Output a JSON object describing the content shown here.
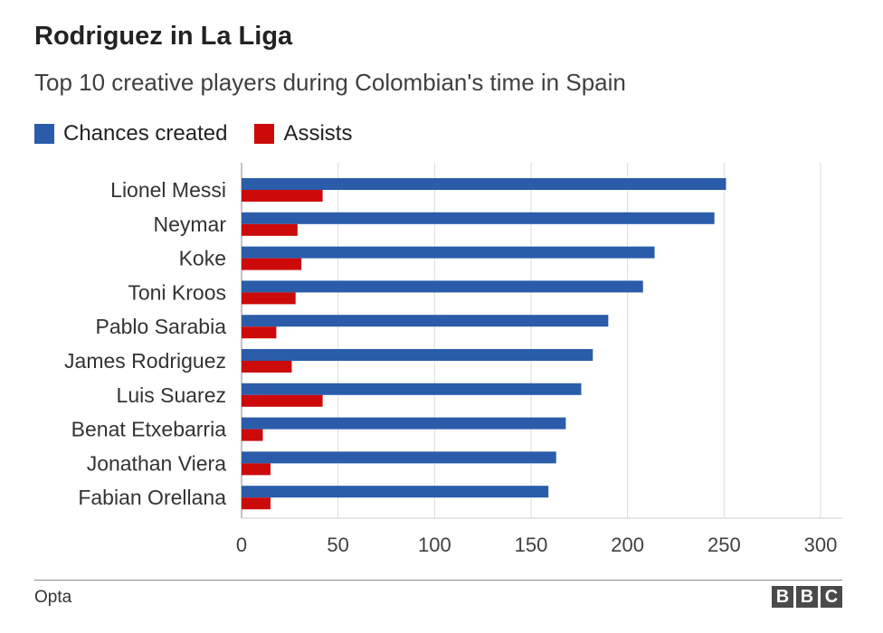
{
  "title": "Rodriguez in La Liga",
  "subtitle": "Top 10 creative players during Colombian's time in Spain",
  "source": "Opta",
  "logo": [
    "B",
    "B",
    "C"
  ],
  "colors": {
    "chances": "#2a5caa",
    "assists": "#cc0a0a"
  },
  "chart_data": {
    "type": "bar",
    "orientation": "horizontal",
    "categories": [
      "Lionel Messi",
      "Neymar",
      "Koke",
      "Toni Kroos",
      "Pablo Sarabia",
      "James Rodriguez",
      "Luis Suarez",
      "Benat Etxebarria",
      "Jonathan Viera",
      "Fabian Orellana"
    ],
    "series": [
      {
        "name": "Chances created",
        "color": "#2a5caa",
        "values": [
          251,
          245,
          214,
          208,
          190,
          182,
          176,
          168,
          163,
          159
        ]
      },
      {
        "name": "Assists",
        "color": "#cc0a0a",
        "values": [
          42,
          29,
          31,
          28,
          18,
          26,
          42,
          11,
          15,
          15
        ]
      }
    ],
    "xlim": [
      0,
      300
    ],
    "xticks": [
      0,
      50,
      100,
      150,
      200,
      250,
      300
    ],
    "grid": true,
    "legend": "top-left"
  }
}
